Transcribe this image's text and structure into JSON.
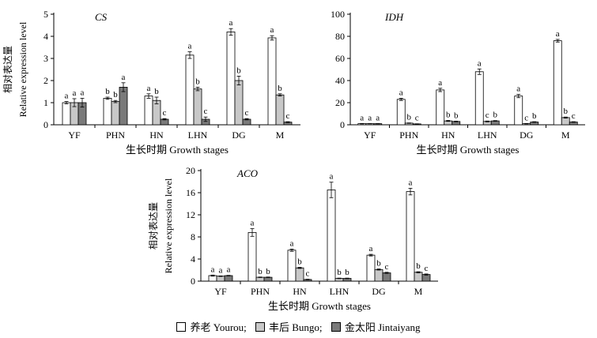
{
  "colors": {
    "series": [
      "#ffffff",
      "#c8c8c8",
      "#7a7a7a"
    ],
    "stroke": "#000000"
  },
  "legend": [
    {
      "label": "养老 Yourou;",
      "color": "#ffffff"
    },
    {
      "label": "丰后 Bungo;",
      "color": "#c8c8c8"
    },
    {
      "label": "金太阳 Jintaiyang",
      "color": "#7a7a7a"
    }
  ],
  "chart_data": [
    {
      "type": "bar",
      "title": "CS",
      "ylabel_cn": "相对表达量",
      "ylabel": "Relative expression level",
      "xlabel": "生长时期 Growth stages",
      "categories": [
        "YF",
        "PHN",
        "HN",
        "LHN",
        "DG",
        "M"
      ],
      "ylim": [
        0,
        5
      ],
      "yticks": [
        0,
        1,
        2,
        3,
        4,
        5
      ],
      "series": [
        {
          "values": [
            1.0,
            1.2,
            1.3,
            3.15,
            4.2,
            3.93
          ],
          "errors": [
            0.05,
            0.05,
            0.1,
            0.15,
            0.15,
            0.1
          ],
          "letters": [
            "a",
            "b",
            "a",
            "a",
            "a",
            "a"
          ]
        },
        {
          "values": [
            1.0,
            1.05,
            1.1,
            1.62,
            2.0,
            1.35
          ],
          "errors": [
            0.18,
            0.05,
            0.15,
            0.08,
            0.2,
            0.05
          ],
          "letters": [
            "a",
            "b",
            "b",
            "b",
            "b",
            "b"
          ]
        },
        {
          "values": [
            1.0,
            1.7,
            0.25,
            0.25,
            0.25,
            0.12
          ],
          "errors": [
            0.2,
            0.2,
            0.03,
            0.1,
            0.03,
            0.02
          ],
          "letters": [
            "a",
            "a",
            "c",
            "c",
            "c",
            "c"
          ]
        }
      ]
    },
    {
      "type": "bar",
      "title": "IDH",
      "ylabel_cn": "",
      "ylabel": "",
      "xlabel": "生长时期 Growth stages",
      "categories": [
        "YF",
        "PHN",
        "HN",
        "LHN",
        "DG",
        "M"
      ],
      "ylim": [
        0,
        100
      ],
      "yticks": [
        0,
        20,
        40,
        60,
        80,
        100
      ],
      "series": [
        {
          "values": [
            1.0,
            23,
            31.5,
            48,
            26,
            76
          ],
          "errors": [
            0.2,
            1,
            1.5,
            2.5,
            1.5,
            1.2
          ],
          "letters": [
            "a",
            "a",
            "a",
            "a",
            "a",
            "a"
          ]
        },
        {
          "values": [
            1.0,
            1.5,
            3.5,
            3.0,
            1.0,
            6.5
          ],
          "errors": [
            0.1,
            0.2,
            0.4,
            0.4,
            0.2,
            0.5
          ],
          "letters": [
            "a",
            "b",
            "b",
            "c",
            "c",
            "b"
          ]
        },
        {
          "values": [
            1.0,
            0.8,
            3.0,
            3.5,
            2.5,
            2.5
          ],
          "errors": [
            0.1,
            0.1,
            0.3,
            0.3,
            0.3,
            0.3
          ],
          "letters": [
            "a",
            "c",
            "b",
            "b",
            "b",
            "c"
          ]
        }
      ]
    },
    {
      "type": "bar",
      "title": "ACO",
      "ylabel_cn": "相对表达量",
      "ylabel": "Relative expression level",
      "xlabel": "生长时期 Growth stages",
      "categories": [
        "YF",
        "PHN",
        "HN",
        "LHN",
        "DG",
        "M"
      ],
      "ylim": [
        0,
        20
      ],
      "yticks": [
        0,
        4,
        8,
        12,
        16,
        20
      ],
      "series": [
        {
          "values": [
            1.0,
            8.8,
            5.6,
            16.5,
            4.7,
            16.2
          ],
          "errors": [
            0.1,
            0.7,
            0.2,
            1.4,
            0.15,
            0.6
          ],
          "letters": [
            "a",
            "a",
            "a",
            "a",
            "a",
            "a"
          ]
        },
        {
          "values": [
            0.9,
            0.7,
            2.4,
            0.5,
            2.1,
            1.6
          ],
          "errors": [
            0.05,
            0.05,
            0.1,
            0.05,
            0.1,
            0.1
          ],
          "letters": [
            "a",
            "b",
            "b",
            "b",
            "b",
            "b"
          ]
        },
        {
          "values": [
            1.0,
            0.7,
            0.3,
            0.5,
            1.5,
            1.2
          ],
          "errors": [
            0.05,
            0.05,
            0.05,
            0.05,
            0.1,
            0.1
          ],
          "letters": [
            "a",
            "b",
            "c",
            "b",
            "c",
            "c"
          ]
        }
      ]
    }
  ]
}
